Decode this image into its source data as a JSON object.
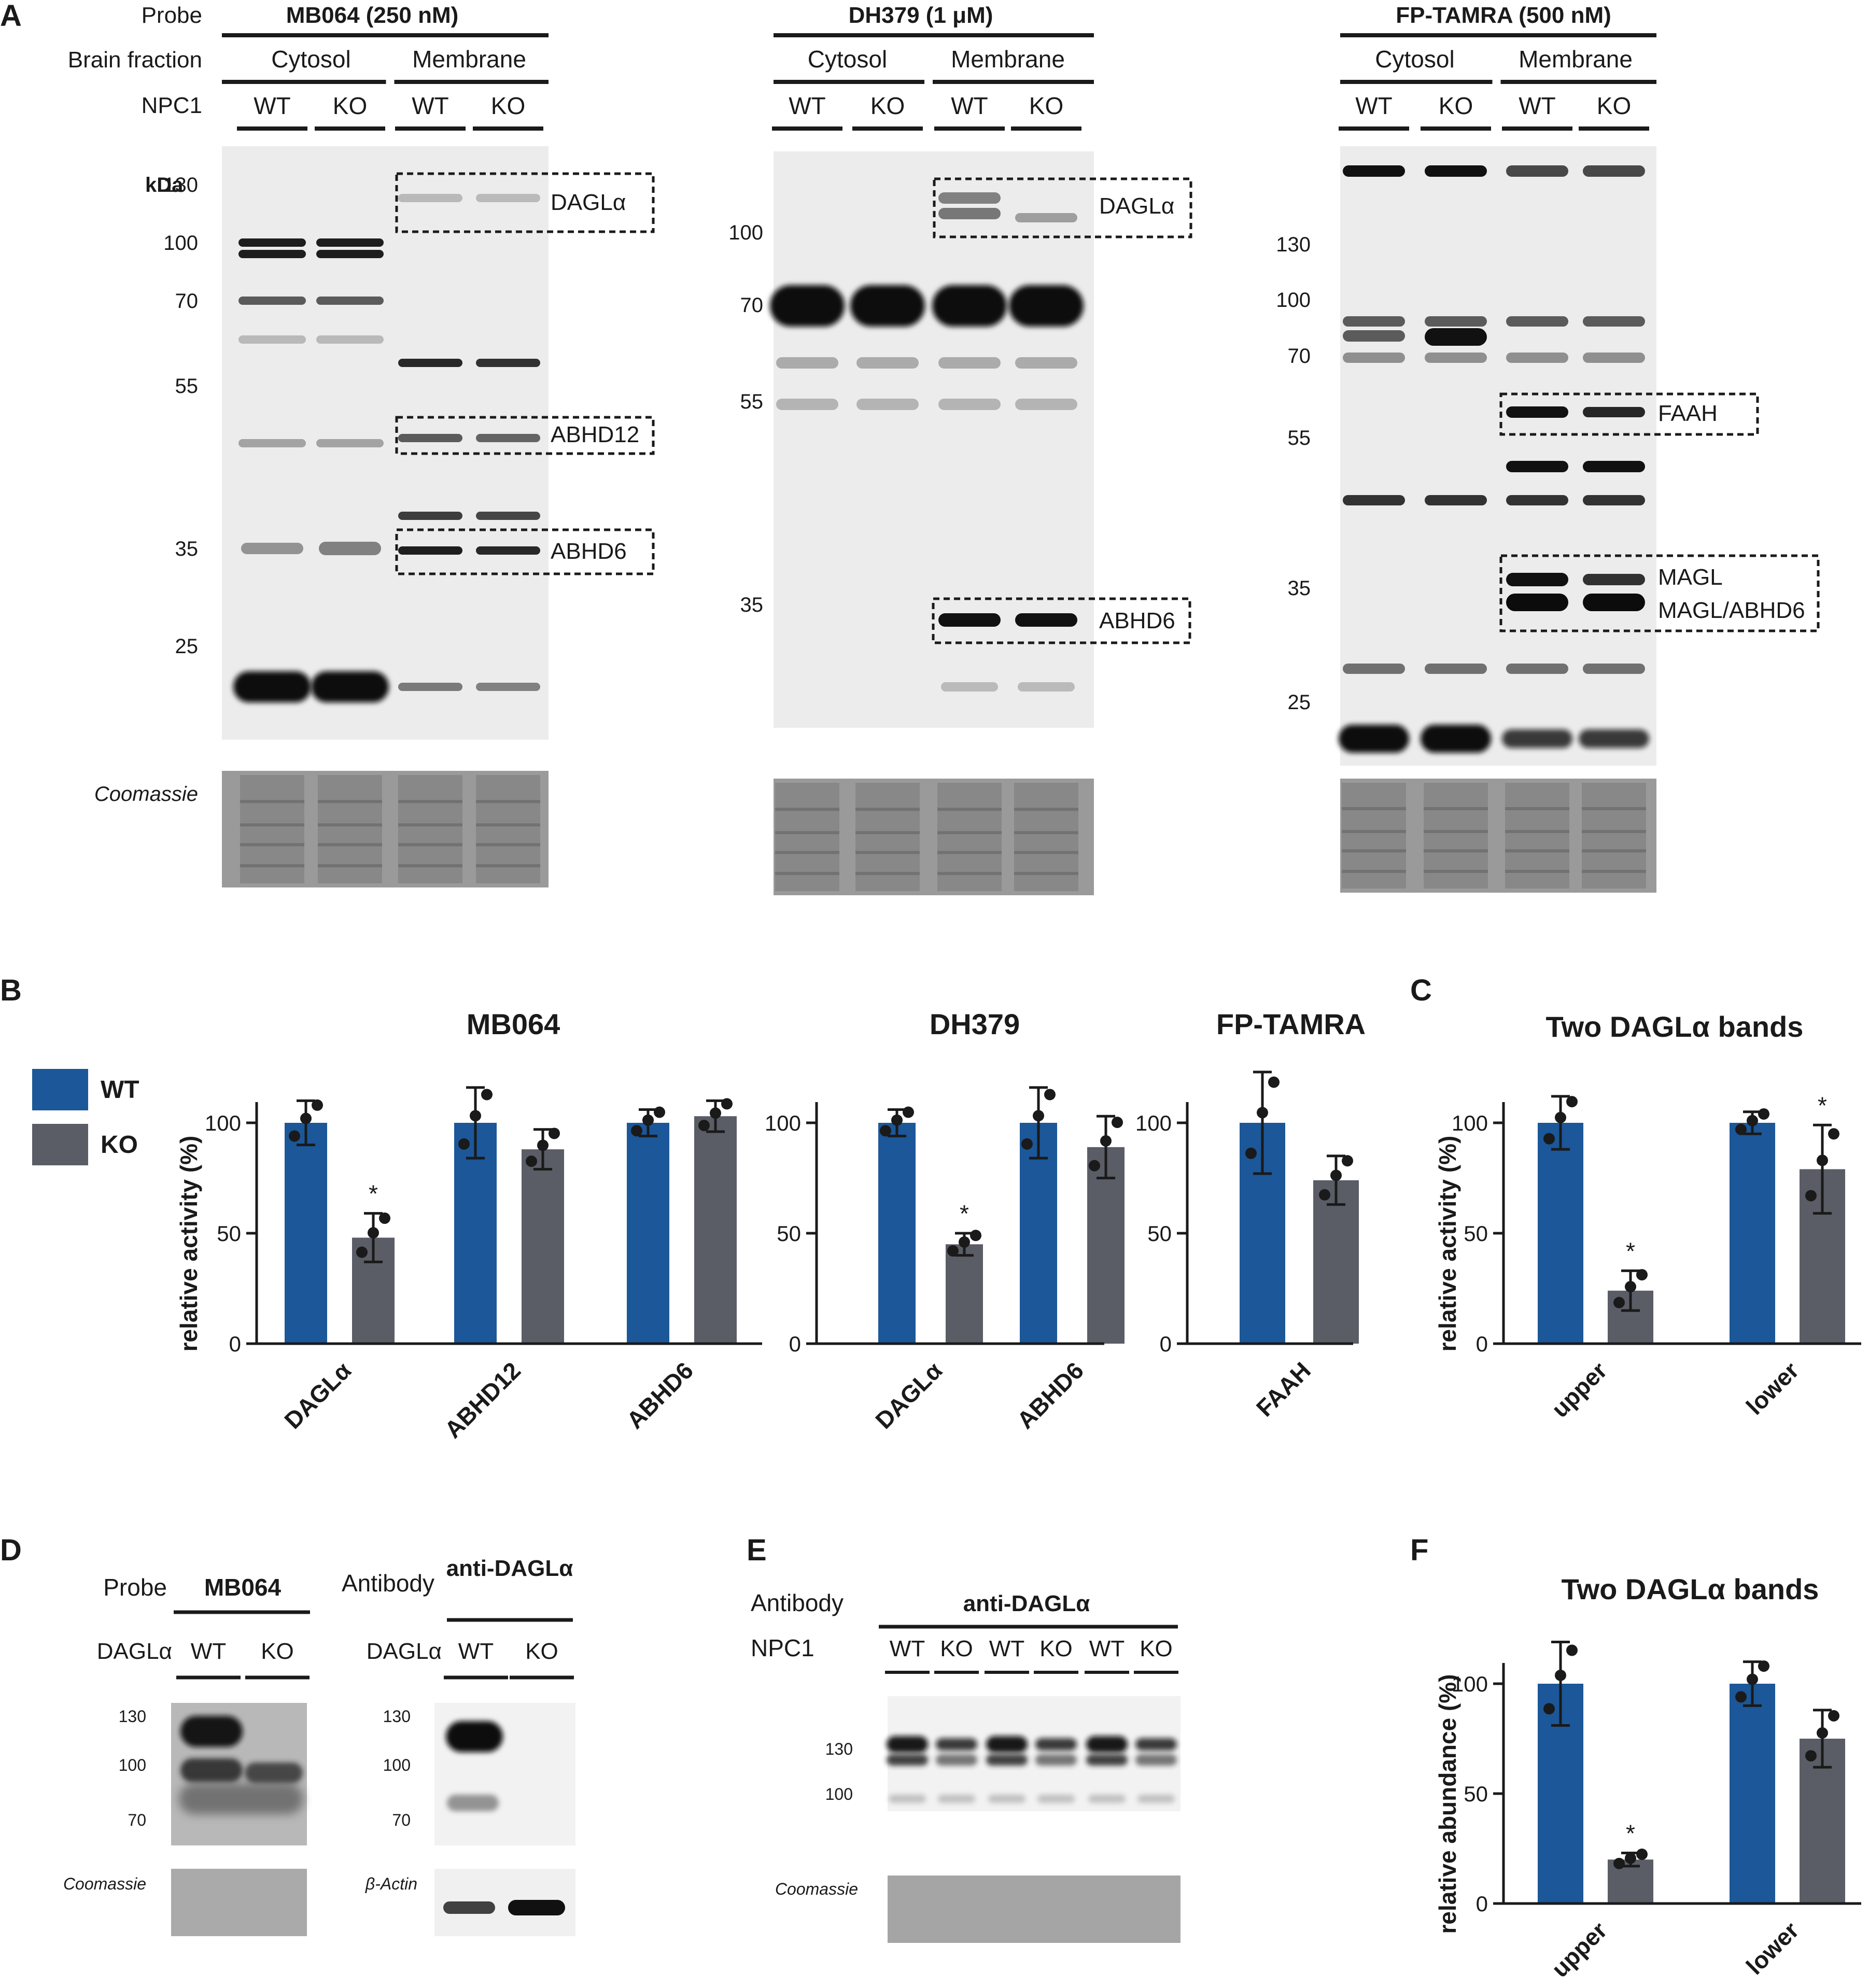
{
  "panel_letters": {
    "A": "A",
    "B": "B",
    "C": "C",
    "D": "D",
    "E": "E",
    "F": "F"
  },
  "panelA": {
    "row_labels": {
      "probe": "Probe",
      "fraction": "Brain fraction",
      "npc1": "NPC1"
    },
    "blots": [
      {
        "probe": "MB064 (250 nM)",
        "fractions": [
          "Cytosol",
          "Membrane"
        ],
        "lanes": [
          "WT",
          "KO",
          "WT",
          "KO"
        ],
        "kda_label": "kDa",
        "markers": [
          "130",
          "100",
          "70",
          "55",
          "35",
          "25"
        ],
        "boxes": [
          "DAGLα",
          "ABHD12",
          "ABHD6"
        ]
      },
      {
        "probe": "DH379 (1 μM)",
        "fractions": [
          "Cytosol",
          "Membrane"
        ],
        "lanes": [
          "WT",
          "KO",
          "WT",
          "KO"
        ],
        "markers": [
          "100",
          "70",
          "55",
          "35"
        ],
        "boxes": [
          "DAGLα",
          "ABHD6"
        ]
      },
      {
        "probe": "FP-TAMRA (500 nM)",
        "fractions": [
          "Cytosol",
          "Membrane"
        ],
        "lanes": [
          "WT",
          "KO",
          "WT",
          "KO"
        ],
        "markers": [
          "130",
          "100",
          "70",
          "55",
          "35",
          "25"
        ],
        "boxes": [
          "FAAH",
          "MAGL",
          "MAGL/ABHD6"
        ]
      }
    ],
    "coomassie": "Coomassie"
  },
  "legend": {
    "wt": "WT",
    "ko": "KO",
    "wt_color": "#1b5799",
    "ko_color": "#5a5d66"
  },
  "chart_data": [
    {
      "panel": "B",
      "type": "bar",
      "title": "MB064",
      "ylabel": "relative activity (%)",
      "ylim": [
        0,
        100
      ],
      "yticks": [
        "0",
        "50",
        "100"
      ],
      "categories": [
        "DAGLα",
        "ABHD12",
        "ABHD6"
      ],
      "series": [
        {
          "name": "WT",
          "values": [
            100,
            100,
            100
          ],
          "err": [
            10,
            16,
            6
          ]
        },
        {
          "name": "KO",
          "values": [
            48,
            88,
            103
          ],
          "err": [
            11,
            9,
            7
          ]
        }
      ],
      "significance": [
        "*",
        "",
        ""
      ]
    },
    {
      "panel": "B",
      "type": "bar",
      "title": "DH379",
      "ylim": [
        0,
        100
      ],
      "yticks": [
        "0",
        "50",
        "100"
      ],
      "categories": [
        "DAGLα",
        "ABHD6"
      ],
      "series": [
        {
          "name": "WT",
          "values": [
            100,
            100
          ],
          "err": [
            6,
            16
          ]
        },
        {
          "name": "KO",
          "values": [
            45,
            89
          ],
          "err": [
            5,
            14
          ]
        }
      ],
      "significance": [
        "*",
        ""
      ]
    },
    {
      "panel": "B",
      "type": "bar",
      "title": "FP-TAMRA",
      "ylim": [
        0,
        100
      ],
      "yticks": [
        "0",
        "50",
        "100"
      ],
      "categories": [
        "FAAH"
      ],
      "series": [
        {
          "name": "WT",
          "values": [
            100
          ],
          "err": [
            23
          ]
        },
        {
          "name": "KO",
          "values": [
            74
          ],
          "err": [
            11
          ]
        }
      ],
      "significance": [
        ""
      ]
    },
    {
      "panel": "C",
      "type": "bar",
      "title": "Two DAGLα bands",
      "ylabel": "relative activity (%)",
      "ylim": [
        0,
        100
      ],
      "yticks": [
        "0",
        "50",
        "100"
      ],
      "categories": [
        "upper",
        "lower"
      ],
      "series": [
        {
          "name": "WT",
          "values": [
            100,
            100
          ],
          "err": [
            12,
            5
          ]
        },
        {
          "name": "KO",
          "values": [
            24,
            79
          ],
          "err": [
            9,
            20
          ]
        }
      ],
      "significance": [
        "*",
        "*"
      ]
    },
    {
      "panel": "F",
      "type": "bar",
      "title": "Two DAGLα bands",
      "ylabel": "relative abundance (%)",
      "ylim": [
        0,
        100
      ],
      "yticks": [
        "0",
        "50",
        "100"
      ],
      "categories": [
        "upper",
        "lower"
      ],
      "series": [
        {
          "name": "WT",
          "values": [
            100,
            100
          ],
          "err": [
            19,
            10
          ]
        },
        {
          "name": "KO",
          "values": [
            20,
            75
          ],
          "err": [
            3,
            13
          ]
        }
      ],
      "significance": [
        "*",
        ""
      ]
    }
  ],
  "panelD": {
    "probe_label": "Probe",
    "probe": "MB064",
    "antibody_label": "Antibody",
    "antibody": "anti-DAGLα",
    "row": "DAGLα",
    "lanes": [
      "WT",
      "KO"
    ],
    "markers": [
      "130",
      "100",
      "70"
    ],
    "coomassie": "Coomassie",
    "actin": "β-Actin"
  },
  "panelE": {
    "antibody_label": "Antibody",
    "antibody": "anti-DAGLα",
    "row": "NPC1",
    "lanes": [
      "WT",
      "KO",
      "WT",
      "KO",
      "WT",
      "KO"
    ],
    "markers": [
      "130",
      "100"
    ],
    "coomassie": "Coomassie"
  }
}
